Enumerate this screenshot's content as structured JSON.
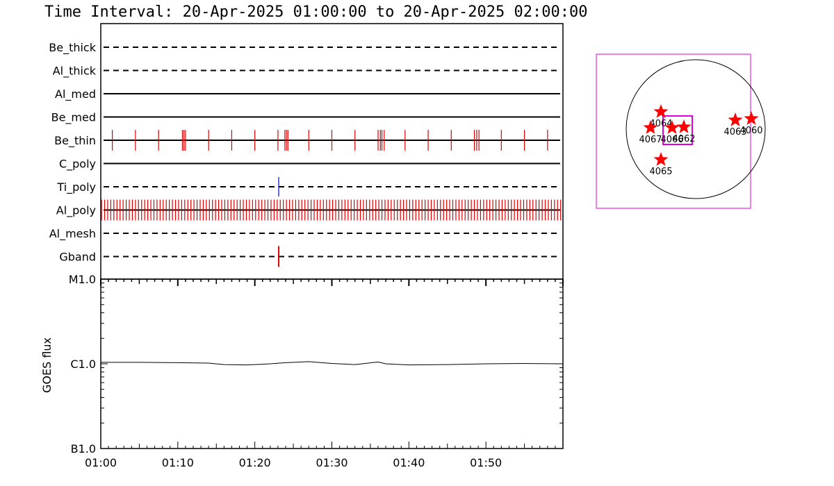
{
  "title": "Time Interval: 20-Apr-2025 01:00:00 to 20-Apr-2025 02:00:00",
  "colors": {
    "exposure": "#dd0000",
    "exposure_alt": "#0000cc",
    "fov_box": "#dd00dd",
    "stars": "#ff0000",
    "axis": "#000000"
  },
  "chart_data": [
    {
      "type": "timeline",
      "x_unit": "minutes after 01:00",
      "xlim": [
        0,
        60
      ],
      "channels": [
        {
          "name": "Be_thick",
          "line": "dashed",
          "exposures": []
        },
        {
          "name": "Al_thick",
          "line": "dashed",
          "exposures": []
        },
        {
          "name": "Al_med",
          "line": "solid",
          "exposures": []
        },
        {
          "name": "Be_med",
          "line": "solid",
          "exposures": []
        },
        {
          "name": "Be_thin",
          "line": "solid",
          "color": "#dd0000",
          "exposures": [
            1.5,
            4.5,
            7.5,
            10.6,
            10.8,
            11.0,
            14.0,
            17.0,
            20.0,
            23.0,
            23.9,
            24.1,
            24.3,
            27.0,
            30.0,
            33.0,
            36.0,
            36.3,
            36.5,
            36.8,
            39.5,
            42.5,
            45.5,
            48.5,
            48.8,
            49.1,
            52.0,
            55.0,
            58.0
          ]
        },
        {
          "name": "C_poly",
          "line": "solid",
          "exposures": []
        },
        {
          "name": "Ti_poly",
          "line": "dashed",
          "color": "#0000cc",
          "exposures": [
            23.1
          ]
        },
        {
          "name": "Al_poly",
          "line": "solid",
          "color": "#dd0000",
          "exposures": "every ~0.4 min across full interval"
        },
        {
          "name": "Al_mesh",
          "line": "dashed",
          "exposures": []
        },
        {
          "name": "Gband",
          "line": "dashed",
          "color": "#dd0000",
          "exposures": [
            23.1
          ]
        }
      ]
    },
    {
      "type": "line",
      "ylabel": "GOES flux",
      "yscale": "log",
      "ylim": [
        1e-07,
        1e-05
      ],
      "ytick_labels": [
        "B1.0",
        "C1.0",
        "M1.0"
      ],
      "xtick_labels": [
        "01:00",
        "01:10",
        "01:20",
        "01:30",
        "01:40",
        "01:50"
      ],
      "xlim": [
        0,
        60
      ],
      "series": [
        {
          "x": [
            0,
            5,
            10,
            14,
            16,
            19,
            22,
            24,
            27,
            30,
            33,
            36,
            37,
            40,
            45,
            50,
            55,
            60
          ],
          "y": [
            1.04e-06,
            1.04e-06,
            1.03e-06,
            1.02e-06,
            9.8e-07,
            9.7e-07,
            1e-06,
            1.03e-06,
            1.06e-06,
            1.01e-06,
            9.8e-07,
            1.05e-06,
            1e-06,
            9.7e-07,
            9.8e-07,
            1e-06,
            1.01e-06,
            1e-06
          ]
        }
      ]
    },
    {
      "type": "scatter",
      "kind": "solar_disk_map",
      "points": [
        {
          "label": "4064",
          "x": -0.5,
          "y": 0.25
        },
        {
          "label": "4067",
          "x": -0.65,
          "y": 0.02
        },
        {
          "label": "4066",
          "x": -0.34,
          "y": 0.02
        },
        {
          "label": "4062",
          "x": -0.17,
          "y": 0.03
        },
        {
          "label": "4065",
          "x": -0.5,
          "y": -0.44
        },
        {
          "label": "4063",
          "x": 0.57,
          "y": 0.13
        },
        {
          "label": "4060",
          "x": 0.8,
          "y": 0.15
        }
      ]
    }
  ]
}
